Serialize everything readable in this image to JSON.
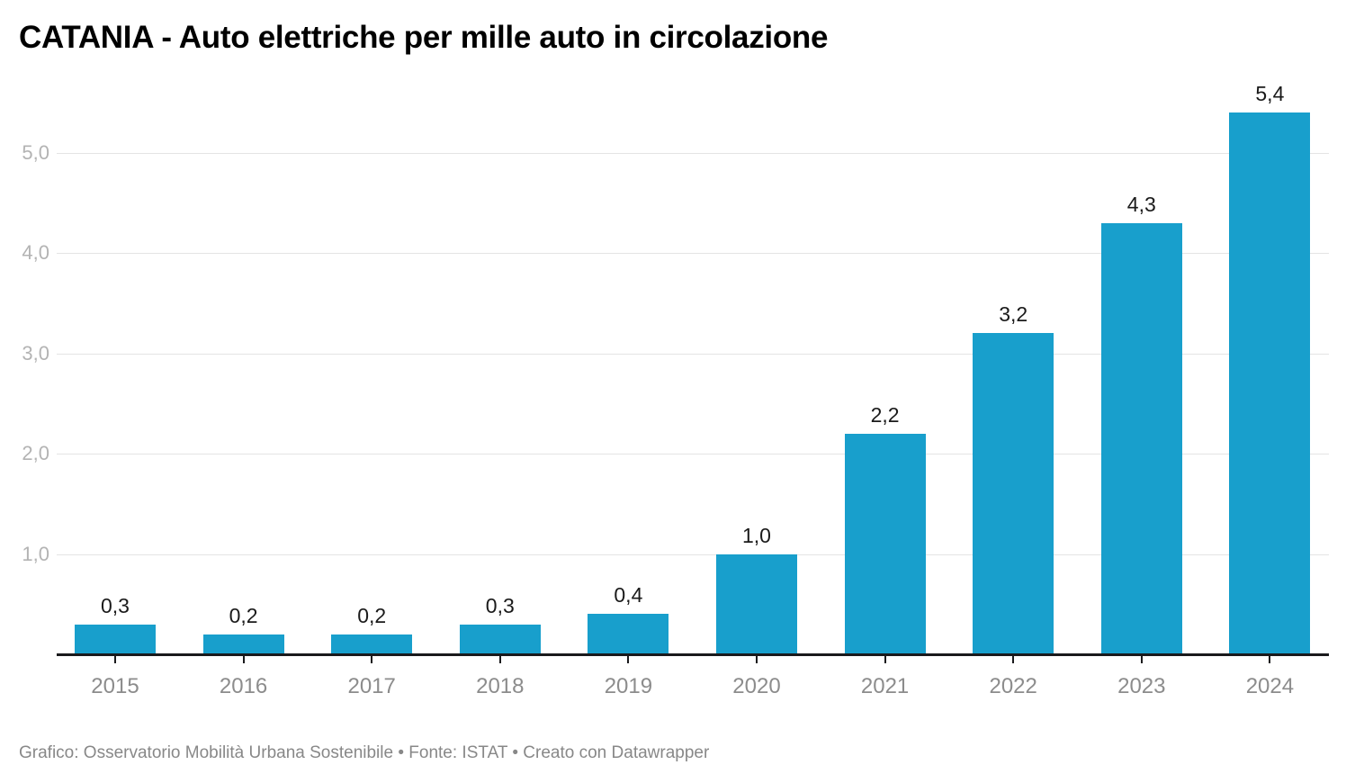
{
  "title": "CATANIA - Auto elettriche per mille auto in circolazione",
  "footer": "Grafico: Osservatorio Mobilità Urbana Sostenibile • Fonte: ISTAT • Creato con Datawrapper",
  "colors": {
    "bar": "#189fcc",
    "grid": "#e4e4e4",
    "axis_line": "#1a1a1c",
    "y_tick_label": "#b3b3b3",
    "x_tick_label": "#8c8c8c",
    "value_label": "#1a1a1a",
    "footer_text": "#888888",
    "title_text": "#000000"
  },
  "chart_data": {
    "type": "bar",
    "title": "CATANIA - Auto elettriche per mille auto in circolazione",
    "xlabel": "",
    "ylabel": "",
    "categories": [
      "2015",
      "2016",
      "2017",
      "2018",
      "2019",
      "2020",
      "2021",
      "2022",
      "2023",
      "2024"
    ],
    "values": [
      0.3,
      0.2,
      0.2,
      0.3,
      0.4,
      1.0,
      2.2,
      3.2,
      4.3,
      5.4
    ],
    "value_labels": [
      "0,3",
      "0,2",
      "0,2",
      "0,3",
      "0,4",
      "1,0",
      "2,2",
      "3,2",
      "4,3",
      "5,4"
    ],
    "y_ticks": [
      {
        "value": 1,
        "label": "1,0"
      },
      {
        "value": 2,
        "label": "2,0"
      },
      {
        "value": 3,
        "label": "3,0"
      },
      {
        "value": 4,
        "label": "4,0"
      },
      {
        "value": 5,
        "label": "5,0"
      }
    ],
    "ylim": [
      0,
      5.5
    ],
    "grid": "horizontal",
    "legend_position": "none",
    "decimal_separator": ","
  }
}
